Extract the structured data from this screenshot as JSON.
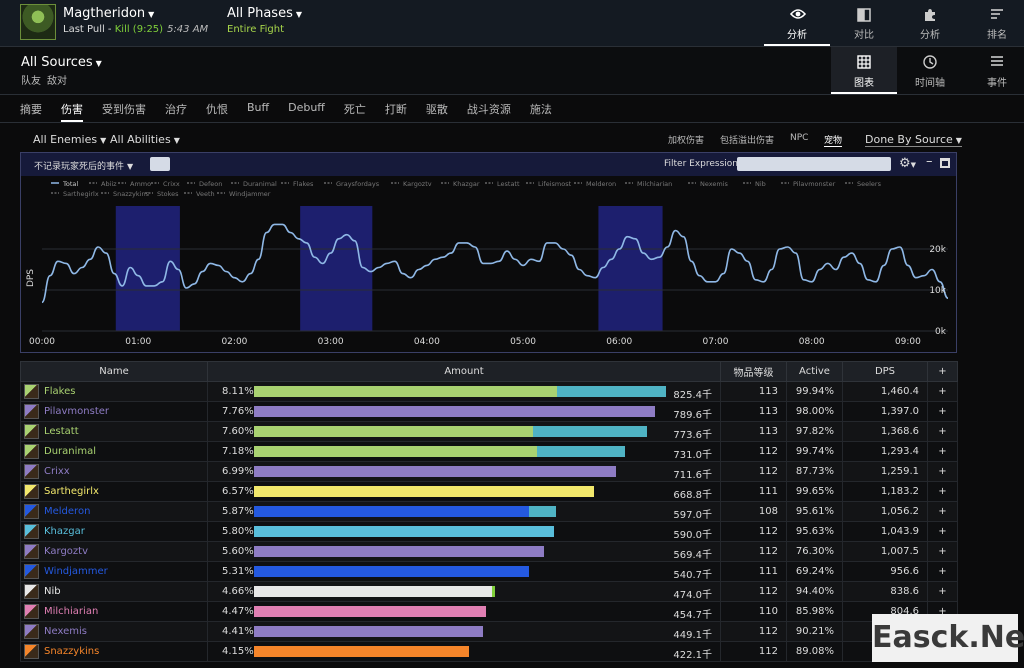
{
  "header": {
    "boss": "Magtheridon",
    "pull_prefix": "Last Pull - ",
    "pull_result": "Kill (9:25)",
    "pull_time": "5:43 AM",
    "phase": "All Phases",
    "phase_sub": "Entire Fight",
    "tabs": [
      {
        "label": "分析",
        "icon": "eye-icon"
      },
      {
        "label": "对比",
        "icon": "compare-icon"
      },
      {
        "label": "分析",
        "icon": "puzzle-icon"
      },
      {
        "label": "排名",
        "icon": "ranking-icon"
      }
    ]
  },
  "sources": {
    "title": "All Sources",
    "sub1": "队友",
    "sub2": "敌对",
    "view_tabs": [
      {
        "label": "图表",
        "icon": "grid-icon"
      },
      {
        "label": "时间轴",
        "icon": "clock-icon"
      },
      {
        "label": "事件",
        "icon": "list-icon"
      }
    ]
  },
  "categories": [
    "摘要",
    "伤害",
    "受到伤害",
    "治疗",
    "仇恨",
    "Buff",
    "Debuff",
    "死亡",
    "打断",
    "驱散",
    "战斗资源",
    "施法"
  ],
  "filters": {
    "enemies": "All Enemies",
    "abilities": "All Abilities",
    "right": [
      "加权伤害",
      "包括溢出伤害",
      "NPC",
      "宠物"
    ],
    "done_by": "Done By Source"
  },
  "chart_header": {
    "exclude": "不记录玩家死后的事件",
    "filter_label": "Filter Expression:"
  },
  "table": {
    "headers": [
      "Name",
      "Amount",
      "物品等级",
      "Active",
      "DPS",
      "+"
    ],
    "rows": [
      {
        "name": "Flakes",
        "pct": "8.11%",
        "amount": "825.4千",
        "ilvl": "113",
        "active": "99.94%",
        "dps": "1,460.4",
        "color": "#a9d271",
        "bar1": 0.714,
        "bar2": 0.258,
        "bar2_color": "#4fb3c4"
      },
      {
        "name": "Pilavmonster",
        "pct": "7.76%",
        "amount": "789.6千",
        "ilvl": "113",
        "active": "98.00%",
        "dps": "1,397.0",
        "color": "#8e7cc4",
        "bar1": 0.945,
        "bar2": 0,
        "bar2_color": ""
      },
      {
        "name": "Lestatt",
        "pct": "7.60%",
        "amount": "773.6千",
        "ilvl": "113",
        "active": "97.82%",
        "dps": "1,368.6",
        "color": "#a9d271",
        "bar1": 0.659,
        "bar2": 0.267,
        "bar2_color": "#4fb3c4"
      },
      {
        "name": "Duranimal",
        "pct": "7.18%",
        "amount": "731.0千",
        "ilvl": "112",
        "active": "99.74%",
        "dps": "1,293.4",
        "color": "#a9d271",
        "bar1": 0.668,
        "bar2": 0.208,
        "bar2_color": "#4fb3c4"
      },
      {
        "name": "Crixx",
        "pct": "6.99%",
        "amount": "711.6千",
        "ilvl": "112",
        "active": "87.73%",
        "dps": "1,259.1",
        "color": "#8e7cc4",
        "bar1": 0.854,
        "bar2": 0,
        "bar2_color": ""
      },
      {
        "name": "Sarthegirlx",
        "pct": "6.57%",
        "amount": "668.8千",
        "ilvl": "111",
        "active": "99.65%",
        "dps": "1,183.2",
        "color": "#f2e86c",
        "bar1": 0.802,
        "bar2": 0,
        "bar2_color": ""
      },
      {
        "name": "Melderon",
        "pct": "5.87%",
        "amount": "597.0千",
        "ilvl": "108",
        "active": "95.61%",
        "dps": "1,056.2",
        "color": "#2459e0",
        "bar1": 0.649,
        "bar2": 0.064,
        "bar2_color": "#4fb3c4"
      },
      {
        "name": "Khazgar",
        "pct": "5.80%",
        "amount": "590.0千",
        "ilvl": "112",
        "active": "95.63%",
        "dps": "1,043.9",
        "color": "#59bedb",
        "bar1": 0.708,
        "bar2": 0,
        "bar2_color": ""
      },
      {
        "name": "Kargoztv",
        "pct": "5.60%",
        "amount": "569.4千",
        "ilvl": "112",
        "active": "76.30%",
        "dps": "1,007.5",
        "color": "#8e7cc4",
        "bar1": 0.684,
        "bar2": 0,
        "bar2_color": ""
      },
      {
        "name": "Windjammer",
        "pct": "5.31%",
        "amount": "540.7千",
        "ilvl": "111",
        "active": "69.24%",
        "dps": "956.6",
        "color": "#2459e0",
        "bar1": 0.649,
        "bar2": 0,
        "bar2_color": ""
      },
      {
        "name": "Nib",
        "pct": "4.66%",
        "amount": "474.0千",
        "ilvl": "112",
        "active": "94.40%",
        "dps": "838.6",
        "color": "#e8e8e8",
        "bar1": 0.561,
        "bar2": 0.007,
        "bar2_color": "#7fcf3a"
      },
      {
        "name": "Milchiarian",
        "pct": "4.47%",
        "amount": "454.7千",
        "ilvl": "110",
        "active": "85.98%",
        "dps": "804.6",
        "color": "#e07fb3",
        "bar1": 0.547,
        "bar2": 0,
        "bar2_color": ""
      },
      {
        "name": "Nexemis",
        "pct": "4.41%",
        "amount": "449.1千",
        "ilvl": "112",
        "active": "90.21%",
        "dps": "",
        "color": "#8e7cc4",
        "bar1": 0.54,
        "bar2": 0,
        "bar2_color": ""
      },
      {
        "name": "Snazzykins",
        "pct": "4.15%",
        "amount": "422.1千",
        "ilvl": "112",
        "active": "89.08%",
        "dps": "",
        "color": "#f5852a",
        "bar1": 0.507,
        "bar2": 0,
        "bar2_color": ""
      }
    ]
  },
  "chart_data": {
    "type": "line",
    "title": "",
    "legend": [
      "Total",
      "Abiiz",
      "Ammo",
      "Crixx",
      "Defeon",
      "Duranimal",
      "Flakes",
      "Graysfordays",
      "Kargoztv",
      "Khazgar",
      "Lestatt",
      "Lifeismost",
      "Melderon",
      "Milchiarian",
      "Nexemis",
      "Nib",
      "Pilavmonster",
      "Seelers",
      "Sarthegirlx",
      "Snazzykins",
      "Stokes",
      "Veeth",
      "Windjammer"
    ],
    "xlabel": "",
    "ylabel": "DPS",
    "x_tick_labels": [
      "00:00",
      "01:00",
      "02:00",
      "03:00",
      "04:00",
      "05:00",
      "06:00",
      "07:00",
      "08:00",
      "09:00"
    ],
    "y_tick_labels": [
      "0k",
      "10k",
      "20k"
    ],
    "ylim": [
      0,
      30500
    ],
    "xlim": [
      0,
      565
    ],
    "highlight_bands": [
      [
        46,
        86
      ],
      [
        161,
        206
      ],
      [
        347,
        387
      ]
    ],
    "series": [
      {
        "name": "Total",
        "color": "#8fb8e6",
        "x": [
          0,
          5,
          10,
          15,
          20,
          25,
          30,
          35,
          40,
          45,
          50,
          55,
          60,
          65,
          70,
          75,
          80,
          85,
          90,
          95,
          100,
          105,
          110,
          115,
          120,
          125,
          130,
          135,
          140,
          145,
          150,
          155,
          160,
          165,
          170,
          175,
          180,
          185,
          190,
          195,
          200,
          205,
          210,
          215,
          220,
          225,
          230,
          235,
          240,
          245,
          250,
          255,
          260,
          265,
          270,
          275,
          280,
          285,
          290,
          295,
          300,
          305,
          310,
          315,
          320,
          325,
          330,
          335,
          340,
          345,
          350,
          355,
          360,
          365,
          370,
          375,
          380,
          385,
          390,
          395,
          400,
          405,
          410,
          415,
          420,
          425,
          430,
          435,
          440,
          445,
          450,
          455,
          460,
          465,
          470,
          475,
          480,
          485,
          490,
          495,
          500,
          505,
          510,
          515,
          520,
          525,
          530,
          535,
          540,
          545,
          550,
          555,
          560,
          565
        ],
        "y": [
          7000,
          13500,
          17000,
          16500,
          14000,
          15500,
          17500,
          20500,
          19000,
          14000,
          11000,
          15500,
          13500,
          11000,
          11000,
          12000,
          17000,
          15000,
          10500,
          11500,
          14500,
          16500,
          16000,
          14500,
          13000,
          12000,
          14000,
          17500,
          24000,
          26000,
          26000,
          24000,
          22500,
          21500,
          18000,
          16500,
          19000,
          22500,
          23500,
          22000,
          15500,
          14500,
          15500,
          16500,
          17000,
          14000,
          13000,
          15000,
          16000,
          17500,
          18000,
          19000,
          21500,
          21500,
          20500,
          16500,
          16500,
          17000,
          19500,
          17500,
          16000,
          17500,
          17000,
          21500,
          21500,
          20000,
          18500,
          15000,
          13500,
          13000,
          15500,
          17500,
          20000,
          23000,
          22500,
          19000,
          17500,
          18000,
          20500,
          24500,
          23000,
          17000,
          13500,
          12000,
          12000,
          14000,
          20000,
          19000,
          17000,
          12500,
          12000,
          15000,
          20000,
          20500,
          19000,
          12500,
          12000,
          15000,
          16500,
          15000,
          18000,
          19000,
          16500,
          12500,
          12000,
          16000,
          20000,
          20500,
          16000,
          13000,
          13500,
          15000,
          12000,
          8000
        ]
      }
    ]
  }
}
